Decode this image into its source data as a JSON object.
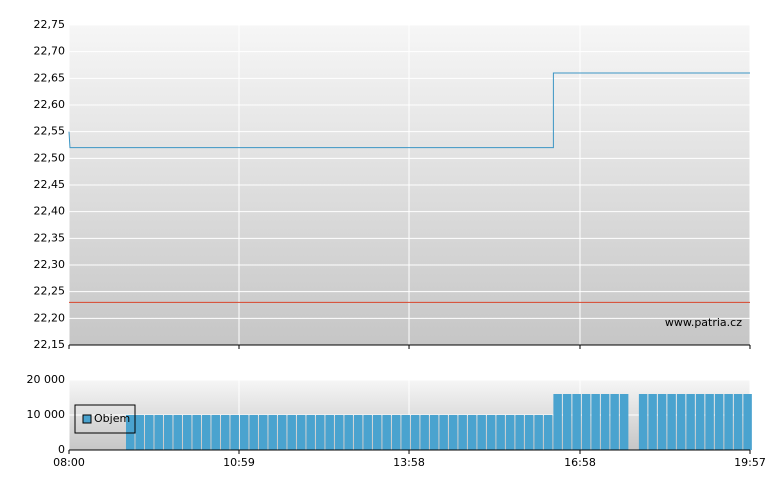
{
  "chart_data": [
    {
      "type": "line",
      "annotation": "www.patria.cz",
      "x": [
        "08:00",
        "08:01",
        "16:30",
        "16:30",
        "19:57"
      ],
      "xlim": [
        "08:00",
        "19:57"
      ],
      "xticks": [
        "08:00",
        "10:59",
        "13:58",
        "16:58",
        "19:57"
      ],
      "series": [
        {
          "color": "#3b95c4",
          "values": [
            22.55,
            22.52,
            22.52,
            22.66,
            22.66
          ]
        },
        {
          "color": "#d9452b",
          "values": [
            22.23,
            22.23,
            22.23,
            22.23,
            22.23
          ]
        }
      ],
      "ylim": [
        22.15,
        22.75
      ],
      "yticks": [
        {
          "value": 22.15,
          "label": "22,15"
        },
        {
          "value": 22.2,
          "label": "22,20"
        },
        {
          "value": 22.25,
          "label": "22,25"
        },
        {
          "value": 22.3,
          "label": "22,30"
        },
        {
          "value": 22.35,
          "label": "22,35"
        },
        {
          "value": 22.4,
          "label": "22,40"
        },
        {
          "value": 22.45,
          "label": "22,45"
        },
        {
          "value": 22.5,
          "label": "22,50"
        },
        {
          "value": 22.55,
          "label": "22,55"
        },
        {
          "value": 22.6,
          "label": "22,60"
        },
        {
          "value": 22.65,
          "label": "22,65"
        },
        {
          "value": 22.7,
          "label": "22,70"
        },
        {
          "value": 22.75,
          "label": "22,75"
        }
      ],
      "grid": true
    },
    {
      "type": "bar",
      "x": [
        "09:00",
        "09:10",
        "09:20",
        "09:30",
        "09:40",
        "09:50",
        "10:00",
        "10:10",
        "10:20",
        "10:30",
        "10:40",
        "10:50",
        "11:00",
        "11:10",
        "11:20",
        "11:30",
        "11:40",
        "11:50",
        "12:00",
        "12:10",
        "12:20",
        "12:30",
        "12:40",
        "12:50",
        "13:00",
        "13:10",
        "13:20",
        "13:30",
        "13:40",
        "13:50",
        "14:00",
        "14:10",
        "14:20",
        "14:30",
        "14:40",
        "14:50",
        "15:00",
        "15:10",
        "15:20",
        "15:30",
        "15:40",
        "15:50",
        "16:00",
        "16:10",
        "16:20",
        "16:30",
        "16:40",
        "16:50",
        "17:00",
        "17:10",
        "17:20",
        "17:30",
        "17:40",
        "17:50",
        "18:00",
        "18:10",
        "18:20",
        "18:30",
        "18:40",
        "18:50",
        "19:00",
        "19:10",
        "19:20",
        "19:30",
        "19:40",
        "19:50"
      ],
      "xlim": [
        "08:00",
        "19:57"
      ],
      "xticks": [
        "08:00",
        "10:59",
        "13:58",
        "16:58",
        "19:57"
      ],
      "series": [
        {
          "name": "Objem",
          "color": "#4aa3cf",
          "values": [
            10000,
            10000,
            10000,
            10000,
            10000,
            10000,
            10000,
            10000,
            10000,
            10000,
            10000,
            10000,
            10000,
            10000,
            10000,
            10000,
            10000,
            10000,
            10000,
            10000,
            10000,
            10000,
            10000,
            10000,
            10000,
            10000,
            10000,
            10000,
            10000,
            10000,
            10000,
            10000,
            10000,
            10000,
            10000,
            10000,
            10000,
            10000,
            10000,
            10000,
            10000,
            10000,
            10000,
            10000,
            10000,
            16000,
            16000,
            16000,
            16000,
            16000,
            16000,
            16000,
            16000,
            null,
            16000,
            16000,
            16000,
            16000,
            16000,
            16000,
            16000,
            16000,
            16000,
            16000,
            16000,
            16000
          ]
        }
      ],
      "ylim": [
        0,
        20000
      ],
      "yticks": [
        0,
        {
          "value": 10000,
          "label": "10 000"
        },
        {
          "value": 20000,
          "label": "20 000"
        }
      ],
      "grid": true,
      "legend": "top-left"
    }
  ]
}
